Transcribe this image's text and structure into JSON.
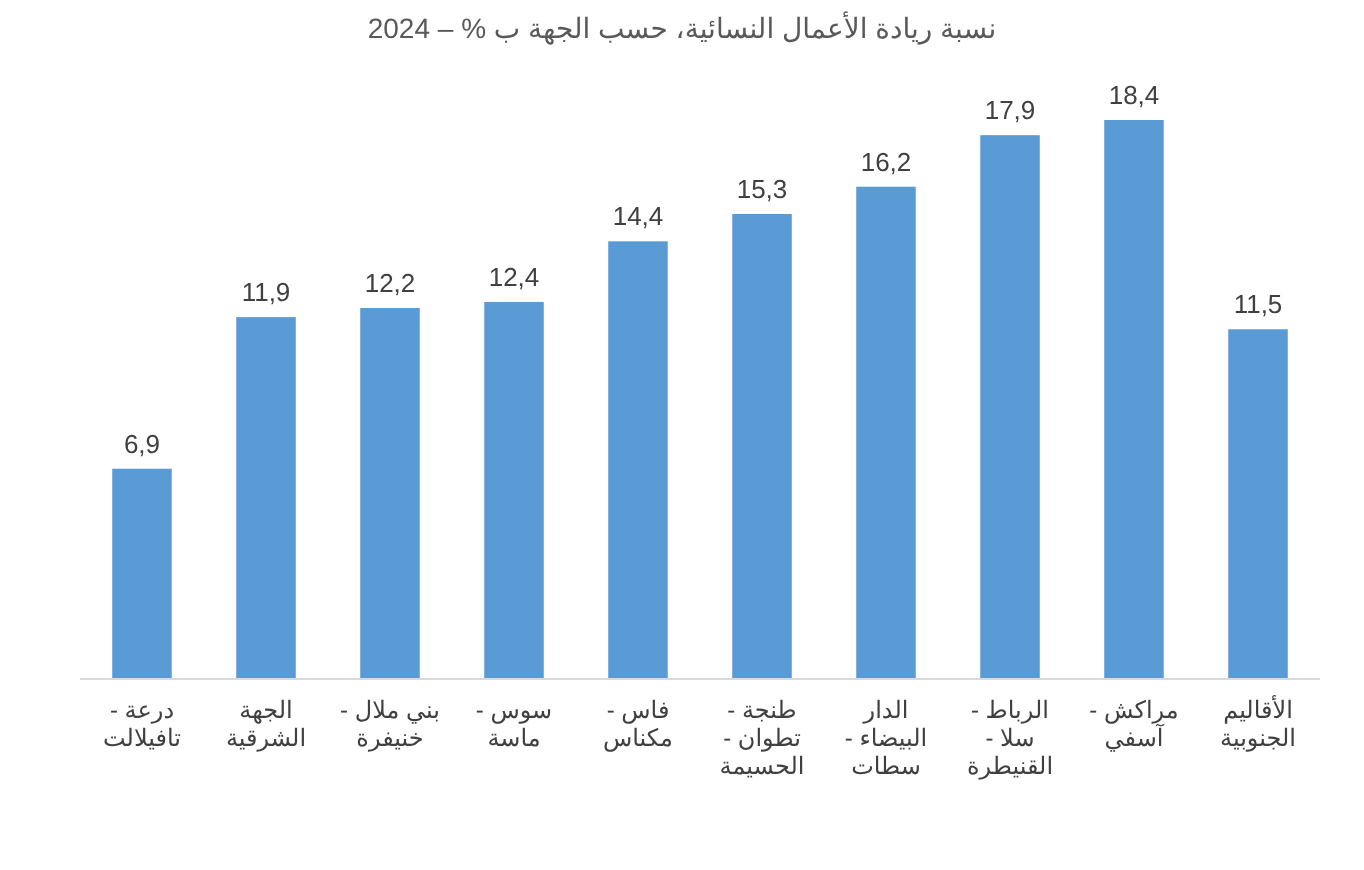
{
  "chart_data": {
    "type": "bar",
    "title": "نسبة ريادة الأعمال النسائية، حسب الجهة ب % – 2024",
    "categories": [
      "درعة - تافيلالت",
      "الجهة الشرقية",
      "بني ملال - خنيفرة",
      "سوس - ماسة",
      "فاس - مكناس",
      "طنجة - تطوان - الحسيمة",
      "الدار البيضاء - سطات",
      "الرباط - سلا - القنيطرة",
      "مراكش - آسفي",
      "الأقاليم الجنوبية"
    ],
    "values": [
      6.9,
      11.9,
      12.2,
      12.4,
      14.4,
      15.3,
      16.2,
      17.9,
      18.4,
      11.5
    ],
    "value_labels": [
      "6,9",
      "11,9",
      "12,2",
      "12,4",
      "14,4",
      "15,3",
      "16,2",
      "17,9",
      "18,4",
      "11,5"
    ],
    "color": "#5b9bd5"
  }
}
